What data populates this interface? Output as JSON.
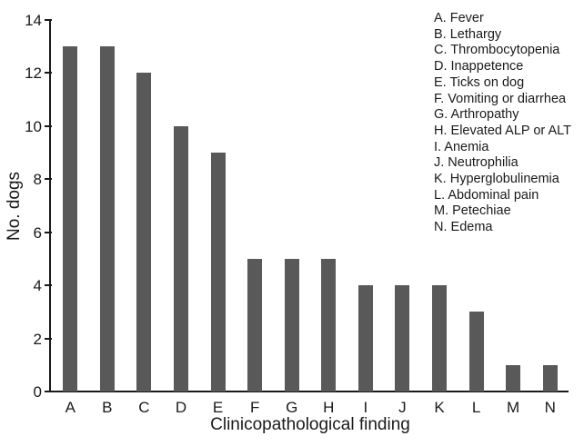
{
  "chart_data": {
    "type": "bar",
    "title": "",
    "categories": [
      "A",
      "B",
      "C",
      "D",
      "E",
      "F",
      "G",
      "H",
      "I",
      "J",
      "K",
      "L",
      "M",
      "N"
    ],
    "values": [
      13,
      13,
      12,
      10,
      9,
      5,
      5,
      5,
      4,
      4,
      4,
      3,
      1,
      1
    ],
    "xlabel": "Clinicopathological finding",
    "ylabel": "No. dogs",
    "ylim": [
      0,
      14
    ],
    "yticks": [
      0,
      2,
      4,
      6,
      8,
      10,
      12,
      14
    ],
    "grid": false,
    "bar_color": "#595959",
    "axis_color": "#1a1a1a",
    "legend_position": "top-right",
    "legend_items": [
      "A. Fever",
      "B. Lethargy",
      "C. Thrombocytopenia",
      "D. Inappetence",
      "E. Ticks on dog",
      "F. Vomiting or diarrhea",
      "G. Arthropathy",
      "H. Elevated ALP or ALT",
      "I. Anemia",
      "J. Neutrophilia",
      "K. Hyperglobulinemia",
      "L. Abdominal pain",
      "M. Petechiae",
      "N. Edema"
    ]
  }
}
